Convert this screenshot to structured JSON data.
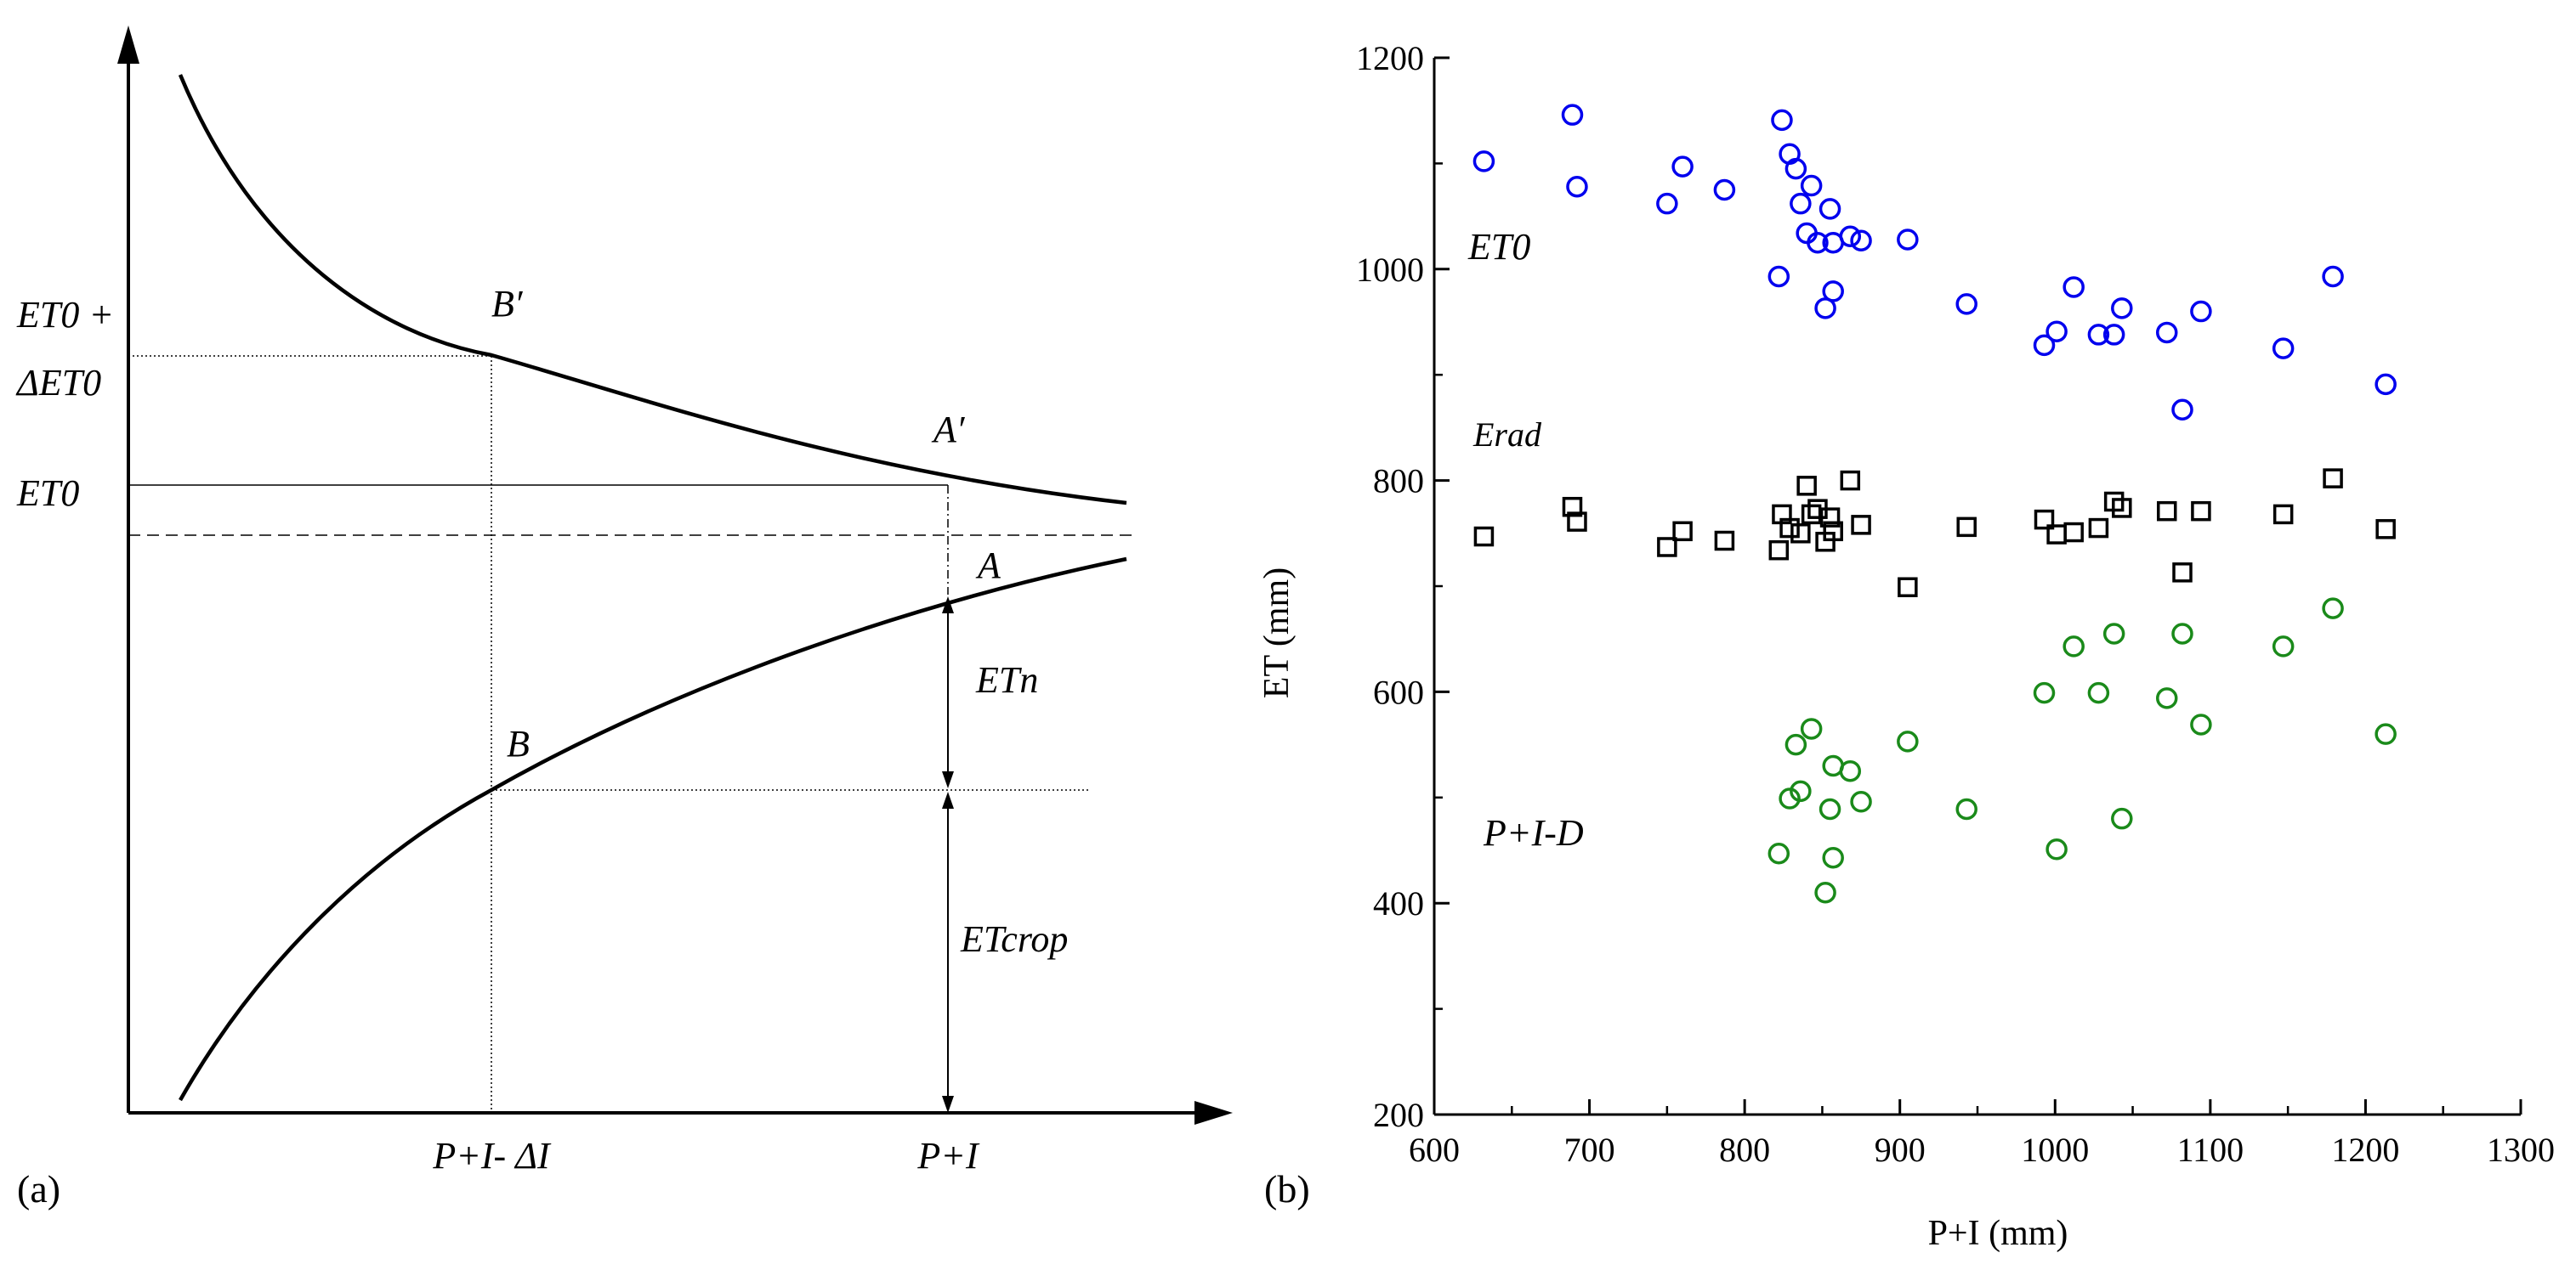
{
  "colors": {
    "axis": "#000000",
    "et0": "#0000ee",
    "erad": "#000000",
    "pid": "#1a8a1a"
  },
  "chart_data": [
    {
      "panel_label": "(a)",
      "type": "line",
      "title": "",
      "x_ticks": [
        "P+I- ΔI",
        "P+I"
      ],
      "y_labels": {
        "et0_delta_top": "ET0 +",
        "et0_delta_bottom": "ΔET0",
        "et0": "ET0"
      },
      "point_labels": [
        "B′",
        "A′",
        "A",
        "B"
      ],
      "annotations": [
        "ETn",
        "ETcrop"
      ],
      "series": [
        {
          "name": "upper curve (ET0 demand)",
          "shape": "decreasing"
        },
        {
          "name": "lower curve (actual ET)",
          "shape": "increasing"
        }
      ]
    },
    {
      "panel_label": "(b)",
      "type": "scatter",
      "xlabel": "P+I (mm)",
      "ylabel": "ET (mm)",
      "xlim": [
        600,
        1300
      ],
      "ylim": [
        200,
        1200
      ],
      "xticks": [
        600,
        700,
        800,
        900,
        1000,
        1100,
        1200,
        1300
      ],
      "yticks": [
        200,
        400,
        600,
        800,
        1000,
        1200
      ],
      "series": [
        {
          "name": "ET0",
          "label": "ET0",
          "marker": "circle",
          "color": "#0000ee",
          "points": [
            [
              632,
              1102
            ],
            [
              689,
              1146
            ],
            [
              692,
              1078
            ],
            [
              750,
              1062
            ],
            [
              760,
              1097
            ],
            [
              787,
              1075
            ],
            [
              822,
              993
            ],
            [
              824,
              1141
            ],
            [
              829,
              1109
            ],
            [
              833,
              1095
            ],
            [
              836,
              1062
            ],
            [
              840,
              1034
            ],
            [
              843,
              1079
            ],
            [
              847,
              1025
            ],
            [
              852,
              963
            ],
            [
              855,
              1057
            ],
            [
              857,
              1025
            ],
            [
              857,
              979
            ],
            [
              868,
              1031
            ],
            [
              875,
              1027
            ],
            [
              905,
              1028
            ],
            [
              943,
              967
            ],
            [
              993,
              928
            ],
            [
              1001,
              941
            ],
            [
              1012,
              983
            ],
            [
              1028,
              938
            ],
            [
              1038,
              938
            ],
            [
              1043,
              963
            ],
            [
              1072,
              940
            ],
            [
              1082,
              867
            ],
            [
              1094,
              960
            ],
            [
              1147,
              925
            ],
            [
              1179,
              993
            ],
            [
              1213,
              891
            ]
          ]
        },
        {
          "name": "Erad",
          "label": "Erad",
          "marker": "square",
          "color": "#000000",
          "points": [
            [
              632,
              747
            ],
            [
              689,
              775
            ],
            [
              692,
              761
            ],
            [
              750,
              737
            ],
            [
              760,
              752
            ],
            [
              787,
              743
            ],
            [
              822,
              734
            ],
            [
              824,
              768
            ],
            [
              829,
              755
            ],
            [
              836,
              750
            ],
            [
              840,
              795
            ],
            [
              843,
              768
            ],
            [
              847,
              773
            ],
            [
              852,
              742
            ],
            [
              855,
              765
            ],
            [
              857,
              752
            ],
            [
              868,
              800
            ],
            [
              875,
              758
            ],
            [
              905,
              699
            ],
            [
              943,
              756
            ],
            [
              993,
              763
            ],
            [
              1001,
              749
            ],
            [
              1012,
              751
            ],
            [
              1028,
              755
            ],
            [
              1038,
              780
            ],
            [
              1043,
              774
            ],
            [
              1072,
              771
            ],
            [
              1082,
              713
            ],
            [
              1094,
              771
            ],
            [
              1147,
              768
            ],
            [
              1179,
              802
            ],
            [
              1213,
              754
            ]
          ]
        },
        {
          "name": "P+I-D",
          "label": "P+I-D",
          "marker": "circle",
          "color": "#1a8a1a",
          "points": [
            [
              822,
              447
            ],
            [
              829,
              499
            ],
            [
              833,
              550
            ],
            [
              836,
              506
            ],
            [
              843,
              565
            ],
            [
              852,
              410
            ],
            [
              855,
              489
            ],
            [
              857,
              530
            ],
            [
              857,
              443
            ],
            [
              868,
              525
            ],
            [
              875,
              496
            ],
            [
              905,
              553
            ],
            [
              943,
              489
            ],
            [
              993,
              599
            ],
            [
              1001,
              451
            ],
            [
              1012,
              643
            ],
            [
              1028,
              599
            ],
            [
              1038,
              655
            ],
            [
              1043,
              480
            ],
            [
              1072,
              594
            ],
            [
              1082,
              655
            ],
            [
              1094,
              569
            ],
            [
              1147,
              643
            ],
            [
              1179,
              679
            ],
            [
              1213,
              560
            ]
          ]
        }
      ]
    }
  ]
}
